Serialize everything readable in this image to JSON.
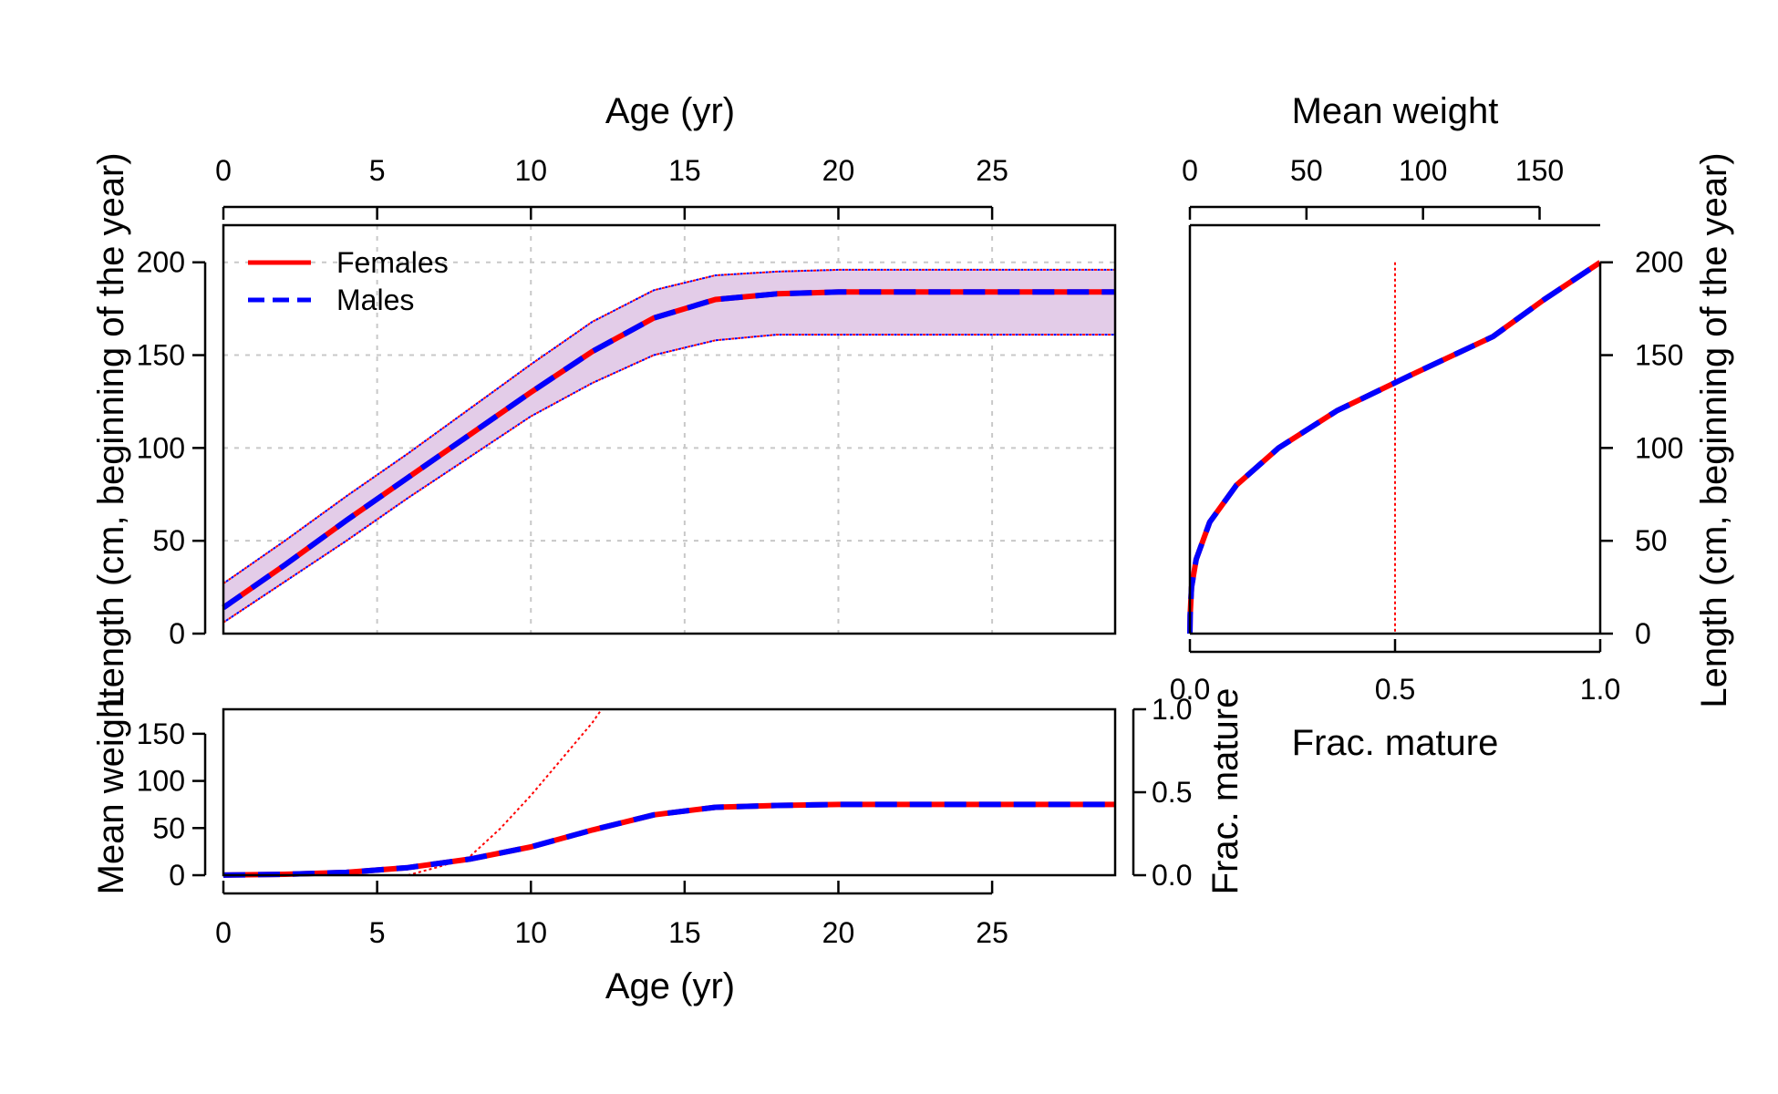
{
  "colors": {
    "females": "#ff0000",
    "males": "#0000ff",
    "band_fill": "#e3cce8",
    "grid": "#c8c8c8"
  },
  "legend": {
    "position": "top-left",
    "females_label": "Females",
    "males_label": "Males"
  },
  "chart_data": [
    {
      "id": "length-at-age",
      "type": "line",
      "title": "",
      "xlabel_top": "Age (yr)",
      "ylabel": "Length (cm, beginning of the year)",
      "xlim": [
        0,
        29
      ],
      "ylim": [
        0,
        220
      ],
      "x_ticks": [
        0,
        5,
        10,
        15,
        20,
        25
      ],
      "y_ticks": [
        0,
        50,
        100,
        150,
        200
      ],
      "grid": true,
      "x": [
        0,
        2,
        4,
        6,
        8,
        10,
        12,
        14,
        16,
        18,
        20,
        22,
        24,
        26,
        29
      ],
      "series": [
        {
          "name": "Females",
          "style": "solid",
          "values": [
            14,
            37,
            61,
            84,
            107,
            130,
            152,
            170,
            180,
            183,
            184,
            184,
            184,
            184,
            184
          ]
        },
        {
          "name": "Males",
          "style": "dashed",
          "values": [
            14,
            37,
            61,
            84,
            107,
            130,
            152,
            170,
            180,
            183,
            184,
            184,
            184,
            184,
            184
          ]
        }
      ],
      "band_upper": [
        27,
        50,
        74,
        97,
        121,
        145,
        168,
        185,
        193,
        195,
        196,
        196,
        196,
        196,
        196
      ],
      "band_lower": [
        6,
        28,
        50,
        73,
        95,
        117,
        135,
        150,
        158,
        161,
        161,
        161,
        161,
        161,
        161
      ]
    },
    {
      "id": "maturity-at-length",
      "type": "line",
      "title": "",
      "xlabel_top": "Mean weight",
      "xlabel_bottom": "Frac. mature",
      "ylabel": "Length (cm, beginning of the year)",
      "xlim_top": [
        0,
        176
      ],
      "x_ticks_top": [
        0,
        50,
        100,
        150
      ],
      "xlim_bottom": [
        0,
        1
      ],
      "x_ticks_bottom": [
        0.0,
        0.5,
        1.0
      ],
      "ylim": [
        0,
        220
      ],
      "y_ticks": [
        0,
        50,
        100,
        150,
        200
      ],
      "weight_length_curve": {
        "length": [
          0,
          10,
          25,
          40,
          60,
          80,
          100,
          120,
          140,
          160,
          180,
          200
        ],
        "weight": [
          0,
          0.1,
          0.7,
          2.7,
          8.5,
          20,
          38,
          63,
          96,
          130,
          152,
          176
        ]
      },
      "maturity_reference_x": 0.5
    },
    {
      "id": "weight-at-age",
      "type": "line",
      "title": "",
      "xlabel": "Age (yr)",
      "ylabel": "Mean weight",
      "ylabel_right": "Frac. mature",
      "xlim": [
        0,
        29
      ],
      "ylim": [
        0,
        176
      ],
      "y_ticks": [
        0,
        50,
        100,
        150
      ],
      "ylim_right": [
        0,
        1
      ],
      "y_ticks_right": [
        0.0,
        0.5,
        1.0
      ],
      "x_ticks": [
        0,
        5,
        10,
        15,
        20,
        25
      ],
      "x": [
        0,
        2,
        4,
        6,
        8,
        10,
        12,
        14,
        16,
        18,
        20,
        22,
        24,
        26,
        29
      ],
      "series": [
        {
          "name": "Females",
          "style": "solid",
          "values": [
            0.1,
            1,
            3,
            8,
            17,
            30,
            48,
            64,
            72,
            74,
            75,
            75,
            75,
            75,
            75
          ]
        },
        {
          "name": "Males",
          "style": "dashed",
          "values": [
            0.1,
            1,
            3,
            8,
            17,
            30,
            48,
            64,
            72,
            74,
            75,
            75,
            75,
            75,
            75
          ]
        }
      ],
      "maturity_at_age": {
        "x": [
          6,
          7,
          8,
          9,
          10,
          11,
          12,
          12.3
        ],
        "values": [
          0,
          0.05,
          0.11,
          0.28,
          0.48,
          0.7,
          0.92,
          1.0
        ]
      }
    }
  ]
}
